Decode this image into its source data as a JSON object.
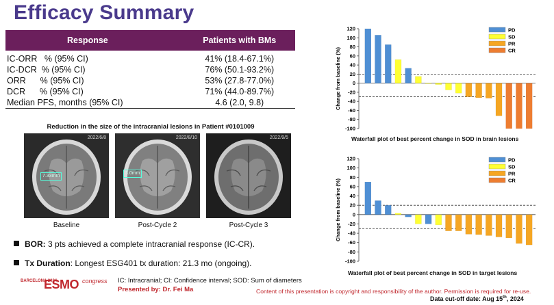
{
  "title": "Efficacy Summary",
  "response_table": {
    "headers": [
      "Response",
      "Patients with BMs"
    ],
    "rows": [
      {
        "label": "IC-ORR   % (95% CI)",
        "value": "41% (18.4-67.1%)"
      },
      {
        "label": "IC-DCR  % (95% CI)",
        "value": "76% (50.1-93.2%)"
      },
      {
        "label": "ORR      % (95% CI)",
        "value": "53% (27.8-77.0%)"
      },
      {
        "label": "DCR      % (95% CI)",
        "value": "71% (44.0-89.7%)"
      },
      {
        "label": "Median PFS, months (95% CI)",
        "value": "4.6 (2.0, 9.8)"
      }
    ]
  },
  "mri": {
    "caption": "Reduction in the size of the intracranial lesions in Patient #0101009",
    "panels": [
      {
        "date": "2022/6/8",
        "measure": "7.33mm",
        "label": "Baseline"
      },
      {
        "date": "2022/8/10",
        "measure": "3.0mm",
        "label": "Post-Cycle 2"
      },
      {
        "date": "2022/9/5",
        "measure": "",
        "label": "Post-Cycle 3"
      }
    ]
  },
  "bullets": [
    {
      "bold": "BOR:",
      "text": " 3 pts achieved a complete intracranial response (IC-CR)."
    },
    {
      "bold": "Tx Duration",
      "text": ": Longest ESG401 tx duration: 21.3 mo (ongoing)."
    }
  ],
  "footer": {
    "logo_text": "BARCELONA 2024",
    "logo_brand": "ESMO",
    "logo_suffix": "congress",
    "abbreviations": "IC: Intracranial; CI: Confidence interval; SOD:  Sum of diameters",
    "presenter": "Presented by: Dr. Fei Ma",
    "copyright": "Content of this presentation is copyright and responsibility of the author. Permission is required for re-use.",
    "cutoff_prefix": "Data cut-off date: Aug 15",
    "cutoff_sup": "th",
    "cutoff_suffix": ", 2024"
  },
  "colors": {
    "PD": "#4f8fd4",
    "SD": "#ffff33",
    "PR": "#f5a623",
    "CR": "#ed7d31",
    "title": "#4a3a8c",
    "table_header": "#6b1f5c",
    "accent_red": "#c0272d"
  },
  "chart_data": [
    {
      "type": "bar",
      "title": "Waterfall plot of best percent change in SOD in brain lesions",
      "ylabel": "Change from baseline (%)",
      "ylim": [
        -100,
        120
      ],
      "yticks": [
        120,
        100,
        80,
        60,
        40,
        20,
        0,
        -20,
        -40,
        -60,
        -80,
        -100
      ],
      "reference_lines": [
        20,
        -30
      ],
      "legend": [
        "PD",
        "SD",
        "PR",
        "CR"
      ],
      "values": [
        120,
        106,
        85,
        52,
        33,
        15,
        0,
        -3,
        -15,
        -22,
        -30,
        -32,
        -33,
        -72,
        -100,
        -100,
        -100
      ],
      "categories": [
        "PD",
        "PD",
        "PD",
        "SD",
        "PD",
        "SD",
        "SD",
        "SD",
        "SD",
        "SD",
        "PR",
        "PR",
        "PR",
        "PR",
        "CR",
        "CR",
        "CR"
      ]
    },
    {
      "type": "bar",
      "title": "Waterfall plot of best percent change in SOD in target lesions",
      "ylabel": "Change from baseline (%)",
      "ylim": [
        -100,
        120
      ],
      "yticks": [
        120,
        100,
        80,
        60,
        40,
        20,
        0,
        -20,
        -40,
        -60,
        -80,
        -100
      ],
      "reference_lines": [
        20,
        -30
      ],
      "legend": [
        "PD",
        "SD",
        "PR",
        "CR"
      ],
      "values": [
        70,
        30,
        20,
        3,
        -5,
        -20,
        -20,
        -22,
        -35,
        -35,
        -42,
        -43,
        -45,
        -48,
        -50,
        -62,
        -65
      ],
      "categories": [
        "PD",
        "PD",
        "PD",
        "SD",
        "PD",
        "SD",
        "PD",
        "SD",
        "PR",
        "PR",
        "PR",
        "PR",
        "PR",
        "PR",
        "PR",
        "PR",
        "PR"
      ]
    }
  ]
}
